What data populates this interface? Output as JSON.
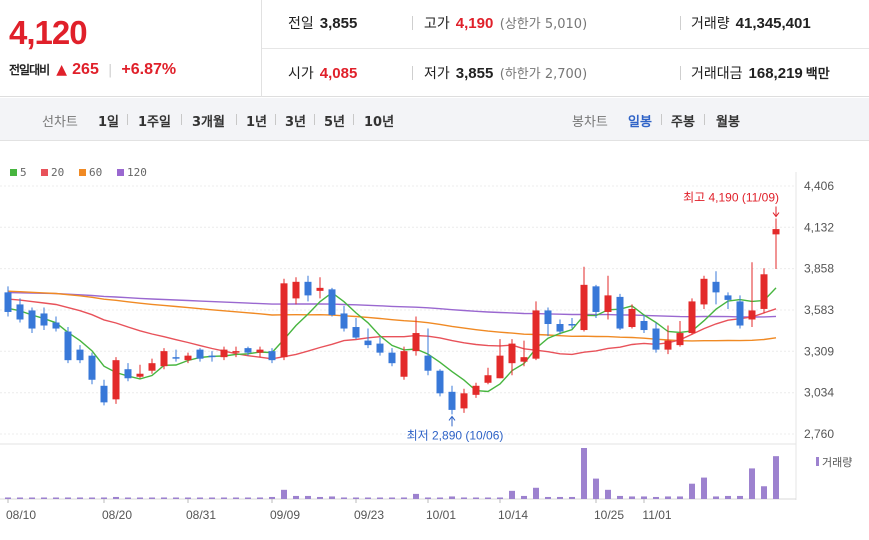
{
  "quote": {
    "price": "4,120",
    "change_label": "전일대비",
    "change_arrow": "▲",
    "change_amount": "265",
    "change_rate": "+6.87%"
  },
  "stats": {
    "prev_label": "전일",
    "prev_value": "3,855",
    "high_label": "고가",
    "high_value": "4,190",
    "high_limit": "(상한가 5,010)",
    "volume_label": "거래량",
    "volume_value": "41,345,401",
    "open_label": "시가",
    "open_value": "4,085",
    "low_label": "저가",
    "low_value": "3,855",
    "low_limit": "(하한가 2,700)",
    "amount_label": "거래대금",
    "amount_value": "168,219",
    "amount_unit": "백만"
  },
  "period_bar": {
    "line_label": "선차트",
    "line_items": [
      "1일",
      "1주일",
      "3개월",
      "1년",
      "3년",
      "5년",
      "10년"
    ],
    "candle_label": "봉차트",
    "candle_items": [
      "일봉",
      "주봉",
      "월봉"
    ],
    "candle_active": "일봉"
  },
  "colors": {
    "up": "#e32a2a",
    "down": "#3878d8",
    "ma5": "#47b53f",
    "ma20": "#e8525a",
    "ma60": "#f08a24",
    "ma120": "#9a68d0",
    "volume": "#9d82cf"
  },
  "chart_data": {
    "type": "candlestick",
    "moving_average_legend": [
      {
        "label": "5",
        "color": "#47b53f"
      },
      {
        "label": "20",
        "color": "#e8525a"
      },
      {
        "label": "60",
        "color": "#f08a24"
      },
      {
        "label": "120",
        "color": "#9a68d0"
      }
    ],
    "y_ticks": [
      "4,406",
      "4,132",
      "3,858",
      "3,583",
      "3,309",
      "3,034",
      "2,760"
    ],
    "ylim": [
      2760,
      4406
    ],
    "x_labels": [
      {
        "label": "08/10",
        "index": 0
      },
      {
        "label": "08/20",
        "index": 8
      },
      {
        "label": "08/31",
        "index": 15
      },
      {
        "label": "09/09",
        "index": 22
      },
      {
        "label": "09/23",
        "index": 29
      },
      {
        "label": "10/01",
        "index": 35
      },
      {
        "label": "10/14",
        "index": 41
      },
      {
        "label": "10/25",
        "index": 49
      },
      {
        "label": "11/01",
        "index": 53
      }
    ],
    "high_annotation": "최고 4,190 (11/09)",
    "low_annotation": "최저 2,890 (10/06)",
    "volume_label": "거래량",
    "candles": [
      [
        3700,
        3740,
        3540,
        3570
      ],
      [
        3620,
        3660,
        3500,
        3520
      ],
      [
        3580,
        3600,
        3430,
        3460
      ],
      [
        3560,
        3600,
        3450,
        3480
      ],
      [
        3500,
        3540,
        3440,
        3460
      ],
      [
        3440,
        3470,
        3230,
        3250
      ],
      [
        3320,
        3350,
        3230,
        3250
      ],
      [
        3280,
        3300,
        3090,
        3120
      ],
      [
        3080,
        3120,
        2950,
        2970
      ],
      [
        2990,
        3270,
        2960,
        3250
      ],
      [
        3190,
        3230,
        3110,
        3130
      ],
      [
        3140,
        3220,
        3130,
        3160
      ],
      [
        3180,
        3260,
        3160,
        3230
      ],
      [
        3210,
        3330,
        3190,
        3310
      ],
      [
        3270,
        3320,
        3240,
        3260
      ],
      [
        3250,
        3300,
        3230,
        3280
      ],
      [
        3320,
        3330,
        3240,
        3260
      ],
      [
        3280,
        3310,
        3240,
        3270
      ],
      [
        3270,
        3340,
        3250,
        3320
      ],
      [
        3300,
        3340,
        3270,
        3310
      ],
      [
        3330,
        3340,
        3280,
        3300
      ],
      [
        3300,
        3340,
        3270,
        3320
      ],
      [
        3310,
        3330,
        3230,
        3250
      ],
      [
        3270,
        3790,
        3250,
        3760
      ],
      [
        3660,
        3800,
        3620,
        3770
      ],
      [
        3770,
        3810,
        3640,
        3680
      ],
      [
        3710,
        3800,
        3660,
        3730
      ],
      [
        3720,
        3730,
        3540,
        3550
      ],
      [
        3560,
        3610,
        3440,
        3460
      ],
      [
        3470,
        3530,
        3390,
        3400
      ],
      [
        3380,
        3460,
        3330,
        3350
      ],
      [
        3360,
        3400,
        3280,
        3300
      ],
      [
        3300,
        3330,
        3210,
        3230
      ],
      [
        3140,
        3340,
        3120,
        3310
      ],
      [
        3310,
        3540,
        3280,
        3430
      ],
      [
        3280,
        3460,
        3150,
        3180
      ],
      [
        3180,
        3190,
        3010,
        3030
      ],
      [
        3040,
        3080,
        2890,
        2920
      ],
      [
        2930,
        3060,
        2900,
        3030
      ],
      [
        3020,
        3100,
        3000,
        3080
      ],
      [
        3100,
        3200,
        3090,
        3150
      ],
      [
        3130,
        3390,
        3130,
        3280
      ],
      [
        3230,
        3390,
        3150,
        3360
      ],
      [
        3240,
        3380,
        3210,
        3270
      ],
      [
        3260,
        3640,
        3250,
        3580
      ],
      [
        3580,
        3600,
        3410,
        3490
      ],
      [
        3490,
        3520,
        3420,
        3440
      ],
      [
        3490,
        3530,
        3460,
        3480
      ],
      [
        3450,
        3870,
        3440,
        3750
      ],
      [
        3740,
        3750,
        3530,
        3570
      ],
      [
        3570,
        3810,
        3520,
        3680
      ],
      [
        3670,
        3690,
        3450,
        3460
      ],
      [
        3470,
        3620,
        3460,
        3590
      ],
      [
        3510,
        3550,
        3430,
        3450
      ],
      [
        3460,
        3500,
        3300,
        3320
      ],
      [
        3320,
        3480,
        3290,
        3380
      ],
      [
        3350,
        3510,
        3340,
        3430
      ],
      [
        3430,
        3660,
        3420,
        3640
      ],
      [
        3620,
        3810,
        3590,
        3790
      ],
      [
        3770,
        3840,
        3620,
        3700
      ],
      [
        3680,
        3700,
        3590,
        3650
      ],
      [
        3640,
        3680,
        3460,
        3480
      ],
      [
        3520,
        3900,
        3470,
        3580
      ],
      [
        3590,
        3860,
        3560,
        3820
      ],
      [
        4085,
        4190,
        3855,
        4120
      ]
    ],
    "volumes": [
      0.03,
      0.02,
      0.02,
      0.02,
      0.02,
      0.03,
      0.03,
      0.02,
      0.03,
      0.04,
      0.02,
      0.02,
      0.02,
      0.03,
      0.02,
      0.02,
      0.02,
      0.02,
      0.02,
      0.02,
      0.02,
      0.03,
      0.04,
      0.18,
      0.06,
      0.06,
      0.04,
      0.05,
      0.03,
      0.02,
      0.02,
      0.02,
      0.02,
      0.03,
      0.1,
      0.03,
      0.02,
      0.05,
      0.03,
      0.02,
      0.02,
      0.03,
      0.16,
      0.06,
      0.22,
      0.04,
      0.04,
      0.04,
      1.0,
      0.4,
      0.18,
      0.06,
      0.05,
      0.05,
      0.04,
      0.05,
      0.05,
      0.3,
      0.42,
      0.05,
      0.06,
      0.06,
      0.6,
      0.25,
      0.84
    ]
  }
}
